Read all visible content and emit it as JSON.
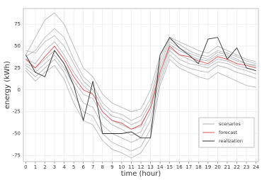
{
  "chart_data": {
    "type": "line",
    "x_label": "time (hour)",
    "y_label": "energy (kWh)",
    "x": [
      0,
      1,
      2,
      3,
      4,
      5,
      6,
      7,
      8,
      9,
      10,
      11,
      12,
      13,
      14,
      15,
      16,
      17,
      18,
      19,
      20,
      21,
      22,
      23,
      24
    ],
    "xlim": [
      -0.25,
      24.25
    ],
    "xticks": [
      0,
      1,
      2,
      3,
      4,
      5,
      6,
      7,
      8,
      9,
      10,
      11,
      12,
      13,
      14,
      15,
      16,
      17,
      18,
      19,
      20,
      21,
      22,
      23,
      24
    ],
    "ylim": [
      -82,
      93
    ],
    "yticks": [
      -75,
      -50,
      -25,
      0,
      25,
      50,
      75
    ],
    "grid": true,
    "legend": "lower right",
    "series": [
      {
        "name": "scenarios",
        "color": "#b0b0b0",
        "values": [
          [
            40,
            60,
            80,
            88,
            75,
            50,
            25,
            15,
            -5,
            -15,
            -20,
            -25,
            -22,
            0,
            40,
            60,
            55,
            50,
            45,
            42,
            50,
            45,
            40,
            35,
            32
          ],
          [
            38,
            45,
            60,
            70,
            60,
            35,
            15,
            5,
            -15,
            -25,
            -28,
            -35,
            -30,
            -10,
            35,
            58,
            52,
            45,
            40,
            38,
            45,
            42,
            38,
            33,
            30
          ],
          [
            35,
            30,
            45,
            55,
            40,
            20,
            5,
            -5,
            -25,
            -35,
            -40,
            -45,
            -42,
            -20,
            25,
            52,
            45,
            40,
            35,
            33,
            40,
            38,
            33,
            30,
            27
          ],
          [
            30,
            25,
            35,
            45,
            30,
            10,
            -5,
            -10,
            -30,
            -40,
            -45,
            -52,
            -48,
            -25,
            20,
            48,
            40,
            35,
            30,
            28,
            35,
            33,
            28,
            25,
            22
          ],
          [
            28,
            20,
            30,
            40,
            25,
            5,
            -15,
            -20,
            -40,
            -50,
            -55,
            -60,
            -55,
            -35,
            15,
            45,
            35,
            30,
            28,
            25,
            32,
            30,
            25,
            22,
            18
          ],
          [
            25,
            15,
            25,
            35,
            20,
            -5,
            -25,
            -30,
            -50,
            -60,
            -65,
            -70,
            -65,
            -45,
            10,
            40,
            30,
            25,
            22,
            20,
            28,
            25,
            20,
            17,
            13
          ],
          [
            22,
            10,
            20,
            28,
            12,
            -15,
            -35,
            -40,
            -58,
            -68,
            -72,
            -78,
            -72,
            -55,
            5,
            35,
            25,
            20,
            15,
            12,
            20,
            15,
            10,
            5,
            3
          ],
          [
            45,
            42,
            55,
            62,
            50,
            30,
            10,
            0,
            -20,
            -30,
            -33,
            -40,
            -35,
            -15,
            30,
            55,
            48,
            42,
            38,
            35,
            43,
            40,
            35,
            30,
            28
          ]
        ]
      },
      {
        "name": "forecast",
        "color": "#e05050",
        "values": [
          35,
          25,
          38,
          50,
          35,
          15,
          0,
          -5,
          -25,
          -35,
          -38,
          -45,
          -40,
          -20,
          20,
          50,
          40,
          38,
          33,
          30,
          38,
          35,
          30,
          28,
          25
        ]
      },
      {
        "name": "realization",
        "color": "#303030",
        "values": [
          40,
          20,
          15,
          45,
          30,
          5,
          -35,
          10,
          -50,
          -50,
          -50,
          -48,
          -55,
          -55,
          40,
          60,
          48,
          40,
          30,
          58,
          60,
          35,
          48,
          25,
          22
        ]
      }
    ]
  }
}
